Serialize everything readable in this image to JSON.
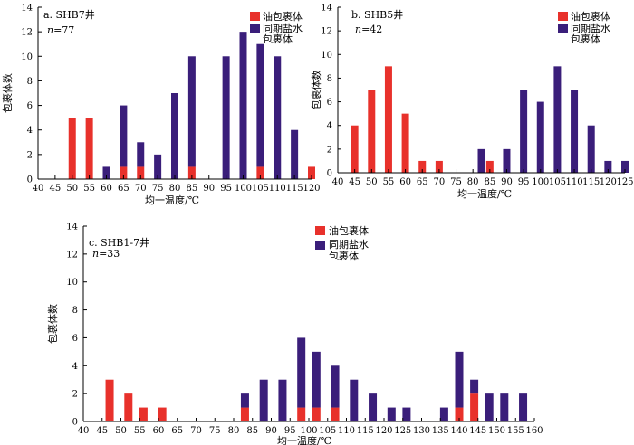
{
  "colors": {
    "oil": "#e8312b",
    "brine": "#3a1e7a"
  },
  "legend": {
    "oil": "油包裹体",
    "brine_line1": "同期盐水",
    "brine_line2": "包裹体"
  },
  "ylabel": "包裹体数",
  "xlabel": "均一温度/℃",
  "chart_data": [
    {
      "type": "bar",
      "stacked": true,
      "title": "a. SHB7井",
      "n_label": "n=77",
      "xlabel": "均一温度/℃",
      "ylabel": "包裹体数",
      "xlim": [
        40,
        120
      ],
      "ylim": [
        0,
        14
      ],
      "xticks": [
        40,
        45,
        50,
        55,
        60,
        65,
        70,
        75,
        80,
        85,
        90,
        95,
        100,
        105,
        110,
        115,
        120
      ],
      "yticks": [
        0,
        2,
        4,
        6,
        8,
        10,
        12,
        14
      ],
      "x": [
        50,
        55,
        60,
        65,
        70,
        75,
        80,
        85,
        95,
        100,
        105,
        110,
        115,
        120
      ],
      "series": [
        {
          "name": "油包裹体",
          "values": [
            5,
            5,
            0,
            1,
            1,
            0,
            0,
            1,
            0,
            0,
            1,
            0,
            0,
            1
          ]
        },
        {
          "name": "同期盐水包裹体",
          "values": [
            0,
            0,
            1,
            5,
            2,
            2,
            7,
            9,
            10,
            12,
            10,
            10,
            4,
            0
          ]
        }
      ]
    },
    {
      "type": "bar",
      "stacked": true,
      "title": "b. SHB5井",
      "n_label": "n=42",
      "xlabel": "均一温度/℃",
      "ylabel": "包裹体数",
      "xlim": [
        40,
        125
      ],
      "ylim": [
        0,
        14
      ],
      "xticks": [
        40,
        45,
        50,
        55,
        60,
        65,
        70,
        75,
        80,
        85,
        90,
        95,
        100,
        105,
        110,
        115,
        120,
        125
      ],
      "yticks": [
        0,
        2,
        4,
        6,
        8,
        10,
        12,
        14
      ],
      "x": [
        45,
        50,
        55,
        60,
        65,
        70,
        82.5,
        85,
        90,
        95,
        100,
        105,
        110,
        115,
        120,
        125
      ],
      "series": [
        {
          "name": "油包裹体",
          "values": [
            4,
            7,
            9,
            5,
            1,
            1,
            0,
            1,
            0,
            0,
            0,
            0,
            0,
            0,
            0,
            0
          ]
        },
        {
          "name": "同期盐水包裹体",
          "values": [
            0,
            0,
            0,
            0,
            0,
            0,
            2,
            0,
            2,
            7,
            6,
            9,
            7,
            4,
            1,
            1
          ]
        }
      ]
    },
    {
      "type": "bar",
      "stacked": true,
      "title": "c. SHB1-7井",
      "n_label": "n=33",
      "xlabel": "均一温度/℃",
      "ylabel": "包裹体数",
      "xlim": [
        40,
        160
      ],
      "ylim": [
        0,
        14
      ],
      "xticks": [
        40,
        45,
        50,
        55,
        60,
        65,
        70,
        75,
        80,
        85,
        90,
        95,
        100,
        105,
        110,
        115,
        120,
        125,
        130,
        135,
        140,
        145,
        150,
        155,
        160
      ],
      "yticks": [
        0,
        2,
        4,
        6,
        8,
        10,
        12,
        14
      ],
      "x": [
        47,
        52,
        56,
        61,
        83,
        88,
        93,
        98,
        102,
        107,
        112,
        117,
        122,
        126,
        136,
        140,
        144,
        148,
        152,
        157
      ],
      "series": [
        {
          "name": "油包裹体",
          "values": [
            3,
            2,
            1,
            1,
            1,
            0,
            0,
            1,
            1,
            1,
            0,
            0,
            0,
            0,
            0,
            1,
            2,
            0,
            0,
            0
          ]
        },
        {
          "name": "同期盐水包裹体",
          "values": [
            0,
            0,
            0,
            0,
            1,
            3,
            3,
            5,
            4,
            3,
            3,
            2,
            1,
            1,
            1,
            4,
            1,
            2,
            2,
            2
          ]
        }
      ]
    }
  ]
}
